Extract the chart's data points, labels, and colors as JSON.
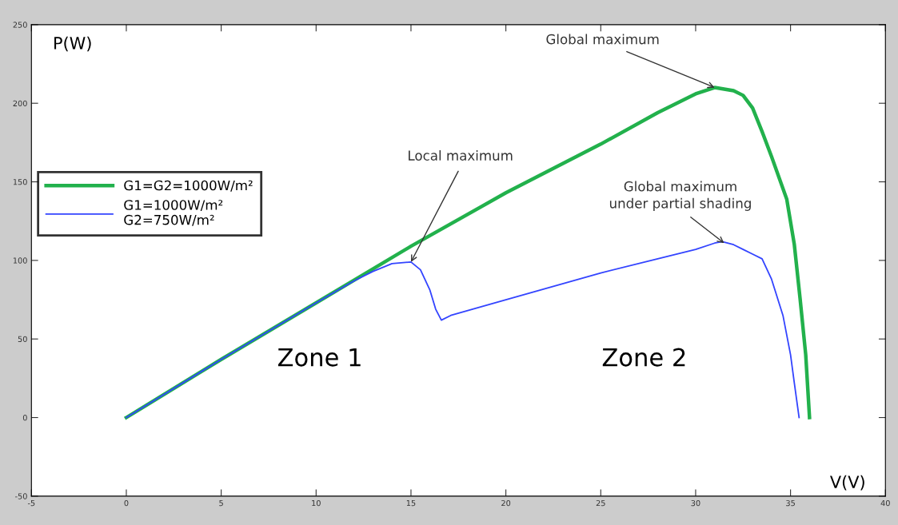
{
  "chart_data": {
    "type": "line",
    "xlabel": "V(V)",
    "ylabel": "P(W)",
    "xlim": [
      -5,
      40
    ],
    "xticks": [
      -5,
      0,
      5,
      10,
      15,
      20,
      25,
      30,
      35,
      40
    ],
    "ylim": [
      -50,
      250
    ],
    "yticks": [
      -50,
      0,
      50,
      100,
      150,
      200,
      250
    ],
    "grid": false,
    "legend": "left",
    "marker": "none",
    "line_style": "solid",
    "series": [
      {
        "name": "G1=G2=1000W/m²",
        "color": "#22b14c",
        "x": [
          0,
          5,
          10,
          15,
          20,
          25,
          28,
          30,
          31,
          32,
          32.5,
          33,
          33.5,
          34,
          34.8,
          35.2,
          35.5,
          35.8,
          36
        ],
        "values": [
          0,
          37,
          73,
          109,
          143,
          174,
          194,
          206,
          210,
          208,
          205,
          197,
          182,
          166,
          139,
          110,
          76,
          40,
          0
        ]
      },
      {
        "name": "G1=1000W/m²\nG2=750W/m²",
        "color": "#3344ff",
        "x": [
          0,
          5,
          10,
          12,
          13,
          14,
          15,
          15.5,
          16,
          16.3,
          16.6,
          17.1,
          20,
          25,
          28,
          30,
          31,
          31.4,
          32,
          32.5,
          33,
          33.5,
          34,
          34.6,
          35,
          35.2,
          35.45
        ],
        "values": [
          0,
          37,
          73,
          87,
          93,
          98,
          99,
          94,
          81,
          69,
          62,
          65,
          75,
          92,
          101,
          107,
          111,
          112,
          110,
          107,
          104,
          101,
          88,
          65,
          40,
          22,
          0
        ]
      }
    ],
    "annotations": [
      {
        "text": "Global maximum",
        "x": 31,
        "y": 210
      },
      {
        "text": "Local maximum",
        "x": 15,
        "y": 99
      },
      {
        "text": "Global maximum\nunder partial shading",
        "x": 31.5,
        "y": 111
      },
      "Zone 1",
      "Zone 2"
    ]
  }
}
